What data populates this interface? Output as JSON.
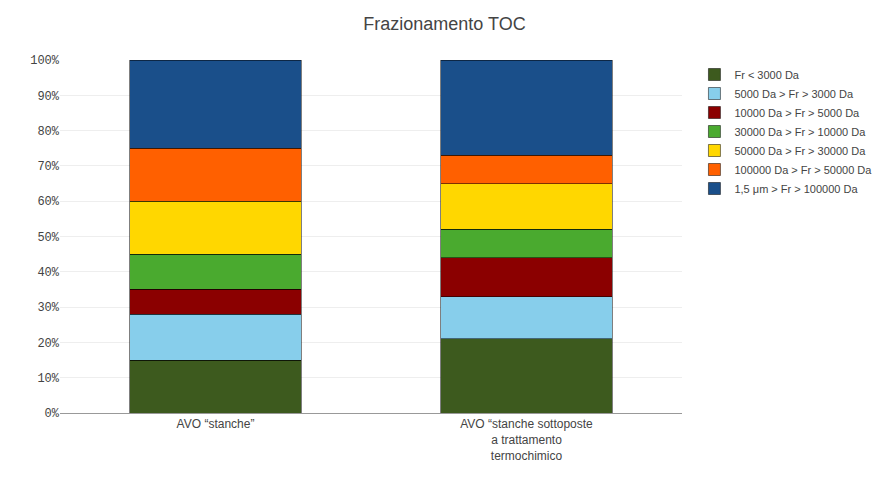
{
  "chart_data": {
    "type": "bar",
    "stacked": true,
    "title": "Frazionamento TOC",
    "categories": [
      "AVO “stanche”",
      "AVO “stanche sottoposte\na trattamento\ntermochimico"
    ],
    "series": [
      {
        "name": "Fr < 3000 Da",
        "color": "#3d5a1e",
        "values": [
          15,
          21
        ]
      },
      {
        "name": "5000 Da > Fr > 3000 Da",
        "color": "#87ceeb",
        "values": [
          13,
          12
        ]
      },
      {
        "name": "10000 Da > Fr > 5000 Da",
        "color": "#8b0000",
        "values": [
          7,
          11
        ]
      },
      {
        "name": "30000 Da > Fr > 10000 Da",
        "color": "#4aaa2f",
        "values": [
          10,
          8
        ]
      },
      {
        "name": "50000 Da > Fr > 30000 Da",
        "color": "#ffd700",
        "values": [
          15,
          13
        ]
      },
      {
        "name": "100000 Da > Fr > 50000 Da",
        "color": "#ff6000",
        "values": [
          15,
          8
        ]
      },
      {
        "name": "1,5 μm > Fr > 100000 Da",
        "color": "#1a4f8a",
        "values": [
          25,
          27
        ]
      }
    ],
    "ylim": [
      0,
      100
    ],
    "yticks": [
      {
        "value": 0,
        "label": "0%"
      },
      {
        "value": 10,
        "label": "10%"
      },
      {
        "value": 20,
        "label": "20%"
      },
      {
        "value": 30,
        "label": "30%"
      },
      {
        "value": 40,
        "label": "40%"
      },
      {
        "value": 50,
        "label": "50%"
      },
      {
        "value": 60,
        "label": "60%"
      },
      {
        "value": 70,
        "label": "70%"
      },
      {
        "value": 80,
        "label": "80%"
      },
      {
        "value": 90,
        "label": "90%"
      },
      {
        "value": 100,
        "label": "100%"
      }
    ],
    "grid": true,
    "legend": "upper right"
  }
}
